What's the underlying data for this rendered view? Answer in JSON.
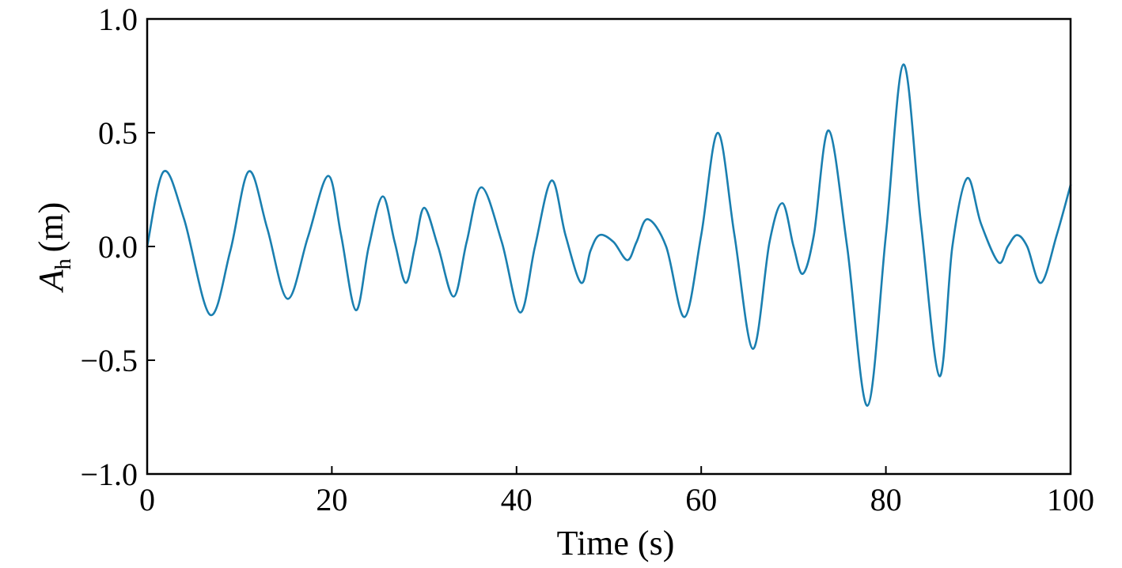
{
  "chart_data": {
    "type": "line",
    "title": "",
    "xlabel": "Time (s)",
    "ylabel": {
      "symbol": "A",
      "subscript": "h",
      "unit": "(m)"
    },
    "xlim": [
      0,
      100
    ],
    "ylim": [
      -1.0,
      1.0
    ],
    "xticks": [
      0,
      20,
      40,
      60,
      80,
      100
    ],
    "xtick_labels": [
      "0",
      "20",
      "40",
      "60",
      "80",
      "100"
    ],
    "yticks": [
      1.0,
      0.5,
      0.0,
      -0.5,
      -1.0
    ],
    "ytick_labels": [
      "1.0",
      "0.5",
      "0.0",
      "−0.5",
      "−1.0"
    ],
    "grid": false,
    "legend": "none",
    "series": [
      {
        "color": "#1a7fb0",
        "points": [
          [
            0,
            0.0
          ],
          [
            1.8,
            0.33
          ],
          [
            4.0,
            0.12
          ],
          [
            6.8,
            -0.3
          ],
          [
            9.0,
            -0.02
          ],
          [
            11.0,
            0.33
          ],
          [
            13.0,
            0.08
          ],
          [
            15.2,
            -0.23
          ],
          [
            17.4,
            0.04
          ],
          [
            19.6,
            0.31
          ],
          [
            21.0,
            0.05
          ],
          [
            22.6,
            -0.28
          ],
          [
            24.0,
            0.0
          ],
          [
            25.5,
            0.22
          ],
          [
            26.8,
            0.02
          ],
          [
            28.0,
            -0.16
          ],
          [
            29.0,
            0.0
          ],
          [
            30.0,
            0.17
          ],
          [
            31.5,
            0.0
          ],
          [
            33.2,
            -0.22
          ],
          [
            34.6,
            0.02
          ],
          [
            36.2,
            0.26
          ],
          [
            38.4,
            0.02
          ],
          [
            40.4,
            -0.29
          ],
          [
            42.0,
            0.0
          ],
          [
            43.8,
            0.29
          ],
          [
            45.3,
            0.05
          ],
          [
            47.0,
            -0.16
          ],
          [
            48.0,
            -0.02
          ],
          [
            49.0,
            0.05
          ],
          [
            50.5,
            0.02
          ],
          [
            52.0,
            -0.06
          ],
          [
            53.0,
            0.02
          ],
          [
            54.2,
            0.12
          ],
          [
            56.2,
            0.0
          ],
          [
            58.2,
            -0.31
          ],
          [
            60.0,
            0.05
          ],
          [
            61.8,
            0.5
          ],
          [
            63.6,
            0.05
          ],
          [
            65.6,
            -0.45
          ],
          [
            67.4,
            0.02
          ],
          [
            68.8,
            0.19
          ],
          [
            70.0,
            0.0
          ],
          [
            71.0,
            -0.12
          ],
          [
            72.2,
            0.05
          ],
          [
            73.8,
            0.51
          ],
          [
            75.8,
            0.0
          ],
          [
            78.0,
            -0.7
          ],
          [
            80.0,
            0.05
          ],
          [
            81.9,
            0.8
          ],
          [
            83.8,
            0.1
          ],
          [
            85.8,
            -0.57
          ],
          [
            87.2,
            0.0
          ],
          [
            88.8,
            0.3
          ],
          [
            90.3,
            0.1
          ],
          [
            92.2,
            -0.07
          ],
          [
            93.2,
            0.0
          ],
          [
            94.2,
            0.05
          ],
          [
            95.3,
            0.0
          ],
          [
            96.8,
            -0.16
          ],
          [
            98.5,
            0.05
          ],
          [
            100,
            0.27
          ]
        ]
      }
    ]
  }
}
